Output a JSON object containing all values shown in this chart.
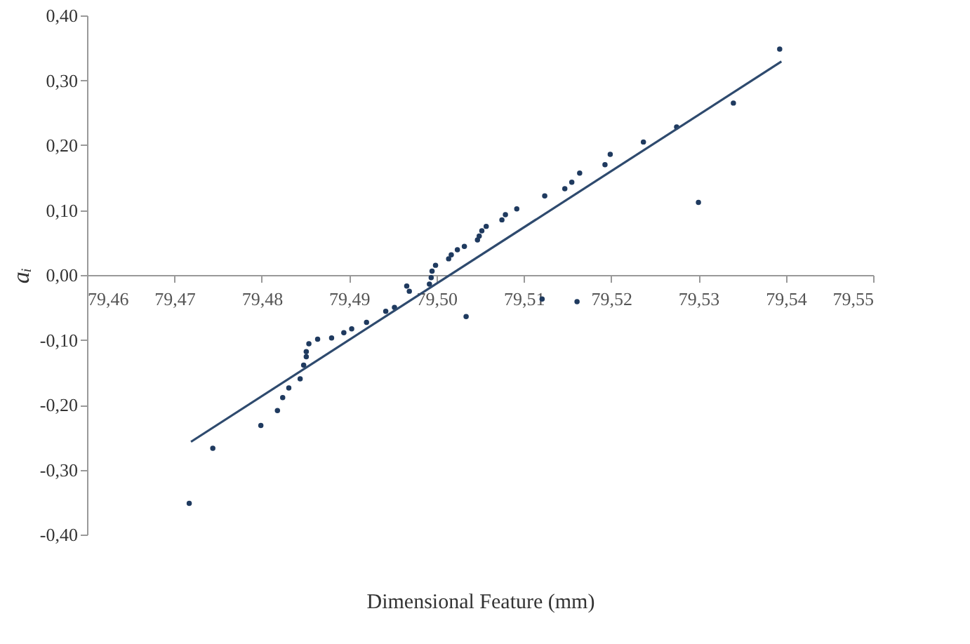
{
  "chart_data": {
    "type": "scatter",
    "xlabel": "Dimensional Feature (mm)",
    "ylabel": "aᵢ",
    "xlim": [
      79.46,
      79.55
    ],
    "ylim": [
      -0.4,
      0.4
    ],
    "xticks": [
      {
        "value": 79.46,
        "label": "79,46"
      },
      {
        "value": 79.47,
        "label": "79,47"
      },
      {
        "value": 79.48,
        "label": "79,48"
      },
      {
        "value": 79.49,
        "label": "79,49"
      },
      {
        "value": 79.5,
        "label": "79,50"
      },
      {
        "value": 79.51,
        "label": "79,51"
      },
      {
        "value": 79.52,
        "label": "79,52"
      },
      {
        "value": 79.53,
        "label": "79,53"
      },
      {
        "value": 79.54,
        "label": "79,54"
      },
      {
        "value": 79.55,
        "label": "79,55"
      }
    ],
    "yticks": [
      {
        "value": -0.4,
        "label": "-0,40"
      },
      {
        "value": -0.3,
        "label": "-0,30"
      },
      {
        "value": -0.2,
        "label": "-0,20"
      },
      {
        "value": -0.1,
        "label": "-0,10"
      },
      {
        "value": 0,
        "label": "0,00"
      },
      {
        "value": 0.1,
        "label": "0,10"
      },
      {
        "value": 0.2,
        "label": "0,20"
      },
      {
        "value": 0.3,
        "label": "0,30"
      },
      {
        "value": 0.4,
        "label": "0,40"
      }
    ],
    "grid": false,
    "series": [
      {
        "color": "#1f3a5f",
        "marker": "circle",
        "x": [
          79.4717,
          79.4744,
          79.4799,
          79.4818,
          79.4824,
          79.4831,
          79.4844,
          79.4848,
          79.4851,
          79.4851,
          79.4854,
          79.4864,
          79.488,
          79.4894,
          79.4903,
          79.492,
          79.4942,
          79.4952,
          79.4966,
          79.4969,
          79.4992,
          79.4994,
          79.4995,
          79.4999,
          79.5014,
          79.5017,
          79.5024,
          79.5032,
          79.5034,
          79.5047,
          79.5049,
          79.5052,
          79.5057,
          79.5075,
          79.5079,
          79.5092,
          79.5121,
          79.5124,
          79.5147,
          79.5155,
          79.5161,
          79.5164,
          79.5193,
          79.5199,
          79.5237,
          79.5275,
          79.53,
          79.534,
          79.5393
        ],
        "values": [
          -0.352,
          -0.267,
          -0.232,
          -0.209,
          -0.189,
          -0.174,
          -0.16,
          -0.139,
          -0.126,
          -0.118,
          -0.106,
          -0.099,
          -0.097,
          -0.089,
          -0.083,
          -0.073,
          -0.056,
          -0.05,
          -0.017,
          -0.025,
          -0.014,
          -0.004,
          0.006,
          0.015,
          0.025,
          0.031,
          0.039,
          0.044,
          -0.064,
          0.054,
          0.06,
          0.068,
          0.075,
          0.085,
          0.093,
          0.102,
          -0.037,
          0.122,
          0.133,
          0.143,
          -0.041,
          0.157,
          0.17,
          0.186,
          0.205,
          0.228,
          0.112,
          0.265,
          0.348
        ]
      },
      {
        "type": "line",
        "marker": "none",
        "color": "#2e4a6e",
        "x": [
          79.4719,
          79.5395
        ],
        "values": [
          -0.257,
          0.329
        ]
      }
    ]
  }
}
